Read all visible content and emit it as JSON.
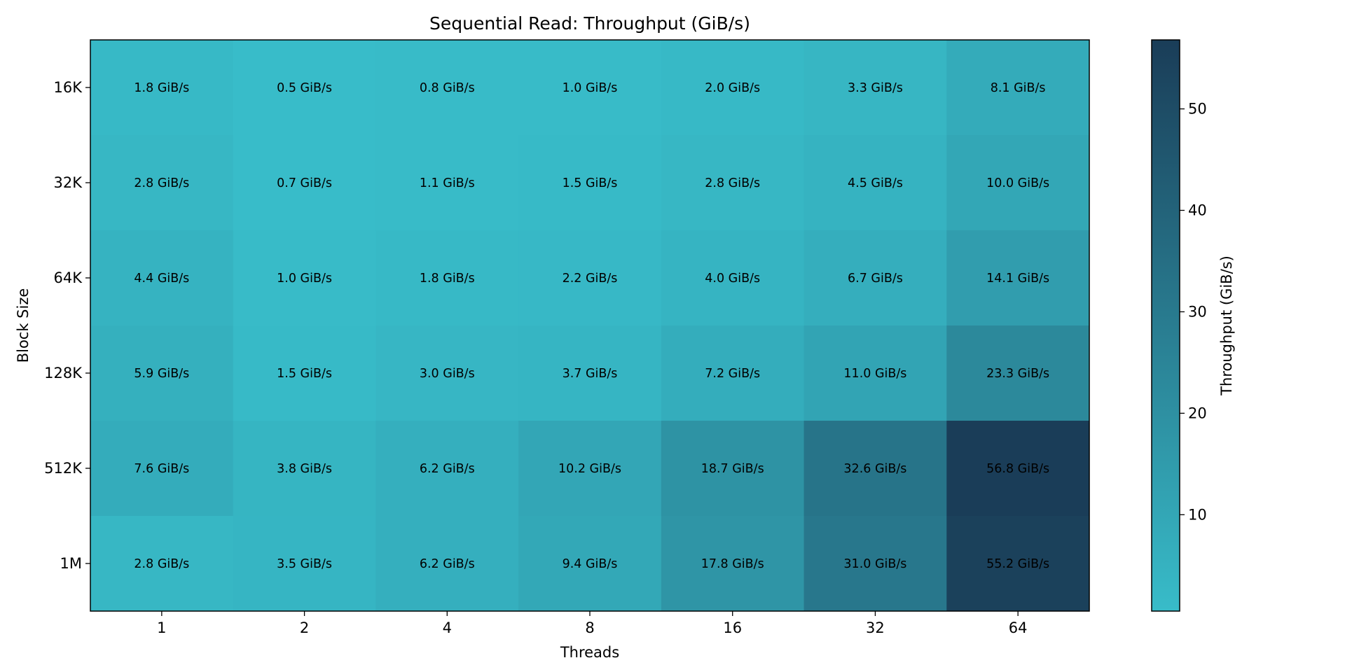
{
  "chart_data": {
    "type": "heatmap",
    "title": "Sequential Read: Throughput (GiB/s)",
    "xlabel": "Threads",
    "ylabel": "Block Size",
    "x_categories": [
      "1",
      "2",
      "4",
      "8",
      "16",
      "32",
      "64"
    ],
    "y_categories": [
      "16K",
      "32K",
      "64K",
      "128K",
      "512K",
      "1M"
    ],
    "unit_suffix": " GiB/s",
    "values": [
      [
        1.8,
        0.5,
        0.8,
        1.0,
        2.0,
        3.3,
        8.1
      ],
      [
        2.8,
        0.7,
        1.1,
        1.5,
        2.8,
        4.5,
        10.0
      ],
      [
        4.4,
        1.0,
        1.8,
        2.2,
        4.0,
        6.7,
        14.1
      ],
      [
        5.9,
        1.5,
        3.0,
        3.7,
        7.2,
        11.0,
        23.3
      ],
      [
        7.6,
        3.8,
        6.2,
        10.2,
        18.7,
        32.6,
        56.8
      ],
      [
        2.8,
        3.5,
        6.2,
        9.4,
        17.8,
        31.0,
        55.2
      ]
    ],
    "colorbar": {
      "label": "Throughput (GiB/s)",
      "min": 0.5,
      "max": 56.8,
      "ticks": [
        10,
        20,
        30,
        40,
        50
      ],
      "colors": [
        "#38bcc9",
        "#1a3d58"
      ]
    }
  }
}
